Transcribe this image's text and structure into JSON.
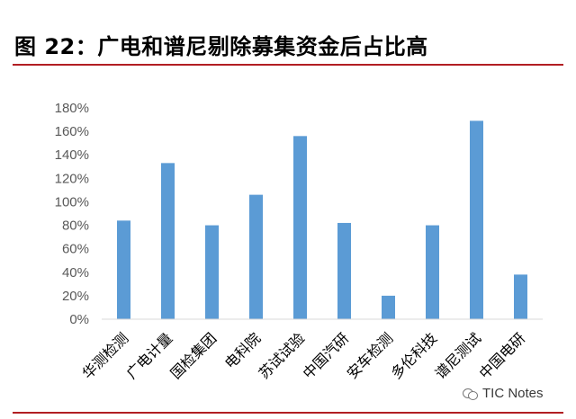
{
  "header": {
    "title": "图 22：广电和谱尼剔除募集资金后占比高"
  },
  "watermark": {
    "text": "TIC Notes"
  },
  "colors": {
    "bar": "#5b9bd5",
    "axis": "#d9d9d9",
    "rule": "#b21e23"
  },
  "chart_data": {
    "type": "bar",
    "title": "",
    "xlabel": "",
    "ylabel": "",
    "categories": [
      "华测检测",
      "广电计量",
      "国检集团",
      "电科院",
      "苏试试验",
      "中国汽研",
      "安车检测",
      "多伦科技",
      "谱尼测试",
      "中国电研"
    ],
    "values": [
      84,
      133,
      80,
      106,
      156,
      82,
      20,
      80,
      169,
      38
    ],
    "ylim": [
      0,
      180
    ],
    "yticks": [
      0,
      20,
      40,
      60,
      80,
      100,
      120,
      140,
      160,
      180
    ],
    "ytick_labels": [
      "0%",
      "20%",
      "40%",
      "60%",
      "80%",
      "100%",
      "120%",
      "140%",
      "160%",
      "180%"
    ],
    "grid": false,
    "legend": "none"
  }
}
